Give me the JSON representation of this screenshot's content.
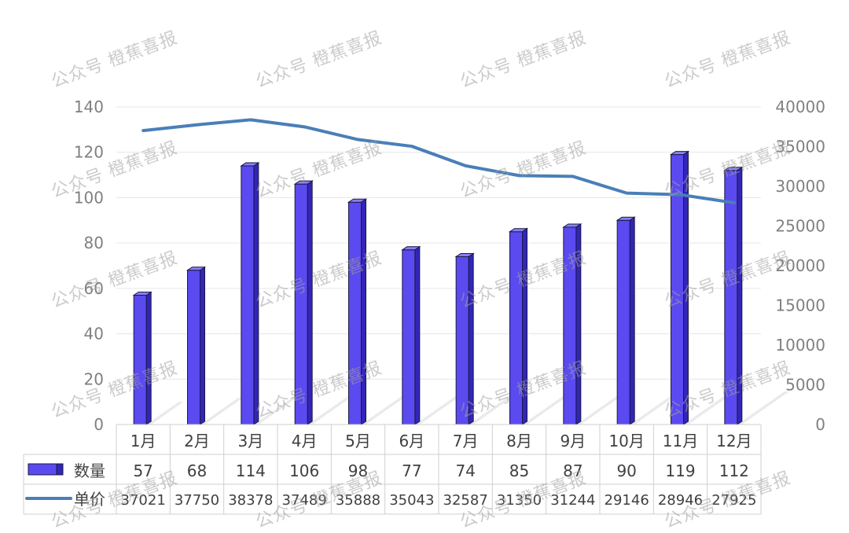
{
  "watermark": "公众号 橙蕉喜报",
  "colors": {
    "bar": "#5a4af0",
    "bar_side": "#3325b8",
    "bar_top": "#8a7ff5",
    "line": "#4a7fb8",
    "axis_text": "#808080",
    "grid": "#e6e6e6",
    "table_border": "#cfcfcf",
    "table_text": "#404040"
  },
  "chart_data": {
    "type": "bar",
    "categories": [
      "1月",
      "2月",
      "3月",
      "4月",
      "5月",
      "6月",
      "7月",
      "8月",
      "9月",
      "10月",
      "11月",
      "12月"
    ],
    "series": [
      {
        "name": "数量",
        "type": "bar",
        "axis": "left",
        "values": [
          57,
          68,
          114,
          106,
          98,
          77,
          74,
          85,
          87,
          90,
          119,
          112
        ]
      },
      {
        "name": "单价",
        "type": "line",
        "axis": "right",
        "values": [
          37021,
          37750,
          38378,
          37489,
          35888,
          35043,
          32587,
          31350,
          31244,
          29146,
          28946,
          27925
        ]
      }
    ],
    "y_left": {
      "ylim": [
        0,
        140
      ],
      "ticks": [
        "0",
        "20",
        "40",
        "60",
        "80",
        "100",
        "120",
        "140"
      ]
    },
    "y_right": {
      "ylim": [
        0,
        40000
      ],
      "ticks": [
        "0",
        "5000",
        "10000",
        "15000",
        "20000",
        "25000",
        "30000",
        "35000",
        "40000"
      ]
    },
    "legend": "data-table-bottom",
    "grid": true
  }
}
